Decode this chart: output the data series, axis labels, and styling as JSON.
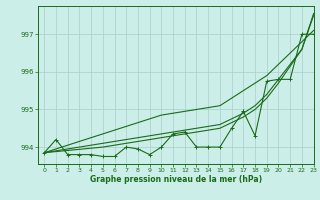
{
  "background_color": "#cceee8",
  "grid_color": "#aacccc",
  "line_color": "#1a6b1a",
  "xlabel": "Graphe pression niveau de la mer (hPa)",
  "xlim": [
    -0.5,
    23
  ],
  "ylim": [
    993.55,
    997.75
  ],
  "yticks": [
    994,
    995,
    996,
    997
  ],
  "xticks": [
    0,
    1,
    2,
    3,
    4,
    5,
    6,
    7,
    8,
    9,
    10,
    11,
    12,
    13,
    14,
    15,
    16,
    17,
    18,
    19,
    20,
    21,
    22,
    23
  ],
  "wiggly_line": [
    993.85,
    994.2,
    993.8,
    993.8,
    993.8,
    993.75,
    993.75,
    994.0,
    993.95,
    993.8,
    994.0,
    994.35,
    994.4,
    994.0,
    994.0,
    994.0,
    994.5,
    994.95,
    994.3,
    995.75,
    995.8,
    995.8,
    997.0,
    997.0
  ],
  "trend_line1": [
    993.85,
    993.95,
    994.05,
    994.15,
    994.25,
    994.35,
    994.45,
    994.55,
    994.65,
    994.75,
    994.85,
    994.9,
    994.95,
    995.0,
    995.05,
    995.1,
    995.3,
    995.5,
    995.7,
    995.9,
    996.2,
    996.5,
    996.8,
    997.1
  ],
  "trend_line2": [
    993.85,
    993.9,
    993.95,
    994.0,
    994.05,
    994.1,
    994.15,
    994.2,
    994.25,
    994.3,
    994.35,
    994.4,
    994.45,
    994.5,
    994.55,
    994.6,
    994.75,
    994.9,
    995.1,
    995.4,
    995.8,
    996.2,
    996.6,
    997.5
  ],
  "trend_line3": [
    993.85,
    993.88,
    993.91,
    993.94,
    993.97,
    994.0,
    994.05,
    994.1,
    994.15,
    994.2,
    994.25,
    994.3,
    994.35,
    994.4,
    994.45,
    994.5,
    994.65,
    994.8,
    995.0,
    995.3,
    995.7,
    996.15,
    996.6,
    997.55
  ]
}
